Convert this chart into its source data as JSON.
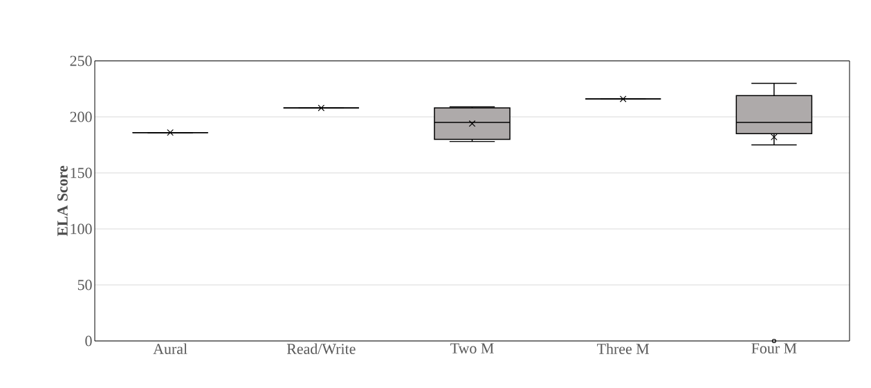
{
  "chart_data": {
    "type": "box",
    "ylabel": "ELA Score",
    "categories": [
      "Aural",
      "Read/Write",
      "Two M",
      "Three M",
      "Four M"
    ],
    "boxes": [
      {
        "low": 186,
        "q1": 186,
        "median": 186,
        "q3": 186,
        "high": 186,
        "mean": 186
      },
      {
        "low": 208,
        "q1": 208,
        "median": 208,
        "q3": 208,
        "high": 208,
        "mean": 208
      },
      {
        "low": 178,
        "q1": 180,
        "median": 195,
        "q3": 208,
        "high": 209,
        "mean": 194
      },
      {
        "low": 216,
        "q1": 216,
        "median": 216,
        "q3": 216,
        "high": 216,
        "mean": 216
      },
      {
        "low": 175,
        "q1": 185,
        "median": 195,
        "q3": 219,
        "high": 230,
        "mean": 182,
        "outliers": [
          0
        ]
      }
    ],
    "colors": [
      "#000000",
      "#000000",
      "#aeaaaa",
      "#000000",
      "#aeaaaa"
    ],
    "ylim": [
      0,
      250
    ],
    "yticks": [
      0,
      50,
      100,
      150,
      200,
      250
    ],
    "grid": "y"
  }
}
